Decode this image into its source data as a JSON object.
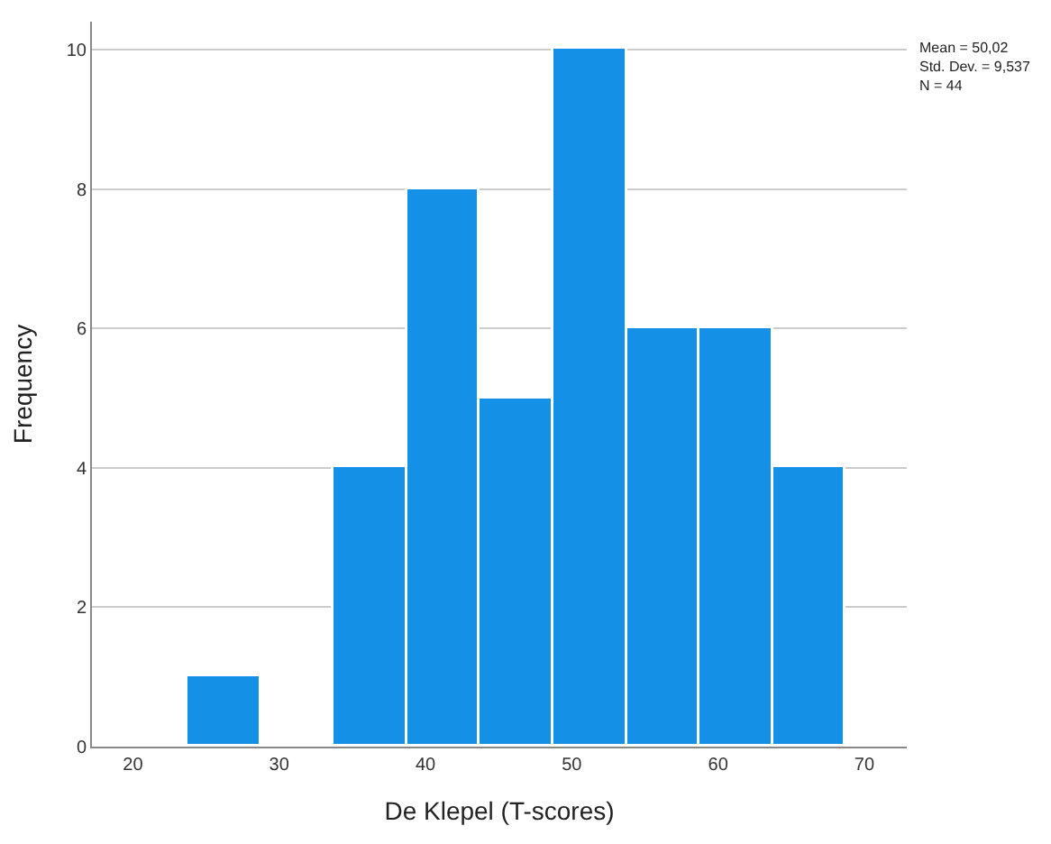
{
  "chart_data": {
    "type": "histogram",
    "xlabel": "De Klepel (T-scores)",
    "ylabel": "Frequency",
    "bins": [
      23.75,
      28.75,
      33.75,
      38.75,
      43.75,
      48.75,
      53.75,
      58.75,
      63.75,
      68.75
    ],
    "values": [
      1,
      0,
      4,
      8,
      5,
      10,
      6,
      6,
      4
    ],
    "color": "#1490e6",
    "xlim": [
      17.2,
      72.9
    ],
    "xticks": [
      20,
      30,
      40,
      50,
      60,
      70
    ],
    "ylim": [
      0,
      10.4
    ],
    "yticks": [
      0,
      2,
      4,
      6,
      8,
      10
    ],
    "grid": "y",
    "annotations": [
      "Mean = 50,02\nStd. Dev. = 9,537\nN = 44"
    ]
  }
}
